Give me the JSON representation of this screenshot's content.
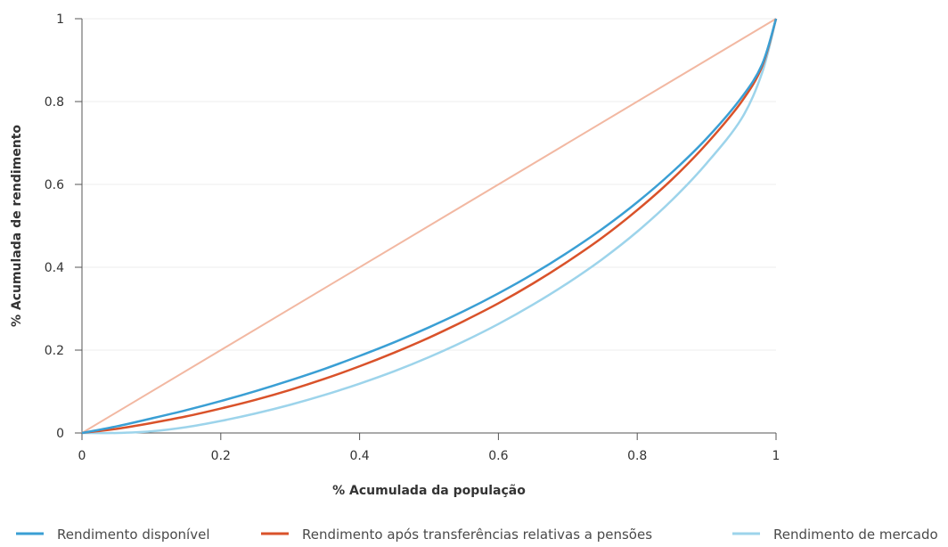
{
  "chart_data": {
    "type": "line",
    "title": "",
    "xlabel": "% Acumulada da população",
    "ylabel": "% Acumulada de rendimento",
    "xlim": [
      0,
      1
    ],
    "ylim": [
      0,
      1
    ],
    "x_ticks": [
      "0",
      "0.2",
      "0.4",
      "0.6",
      "0.8",
      "1"
    ],
    "y_ticks": [
      "0",
      "0.2",
      "0.4",
      "0.6",
      "0.8",
      "1"
    ],
    "grid": true,
    "legend_position": "bottom",
    "equality_line": {
      "x": [
        0,
        1
      ],
      "y": [
        0,
        1
      ],
      "color": "#f2b8a2"
    },
    "x": [
      0,
      0.05,
      0.1,
      0.15,
      0.2,
      0.25,
      0.3,
      0.35,
      0.4,
      0.45,
      0.5,
      0.55,
      0.6,
      0.65,
      0.7,
      0.75,
      0.8,
      0.85,
      0.9,
      0.95,
      0.98,
      1
    ],
    "series": [
      {
        "name": "Rendimento disponível",
        "color": "#3a9fd4",
        "values": [
          0,
          0.016,
          0.035,
          0.055,
          0.077,
          0.101,
          0.127,
          0.155,
          0.186,
          0.219,
          0.255,
          0.294,
          0.337,
          0.384,
          0.436,
          0.493,
          0.557,
          0.629,
          0.711,
          0.809,
          0.89,
          1
        ]
      },
      {
        "name": "Rendimento após transferências relativas a pensões",
        "color": "#d9522a",
        "values": [
          0,
          0.01,
          0.024,
          0.04,
          0.059,
          0.08,
          0.104,
          0.131,
          0.161,
          0.194,
          0.23,
          0.27,
          0.313,
          0.361,
          0.414,
          0.472,
          0.538,
          0.612,
          0.698,
          0.799,
          0.885,
          1
        ]
      },
      {
        "name": "Rendimento de mercado",
        "color": "#9dd4eb",
        "values": [
          0,
          0,
          0.004,
          0.014,
          0.029,
          0.047,
          0.068,
          0.092,
          0.119,
          0.149,
          0.183,
          0.221,
          0.263,
          0.31,
          0.362,
          0.42,
          0.486,
          0.562,
          0.651,
          0.758,
          0.87,
          1
        ]
      }
    ]
  }
}
